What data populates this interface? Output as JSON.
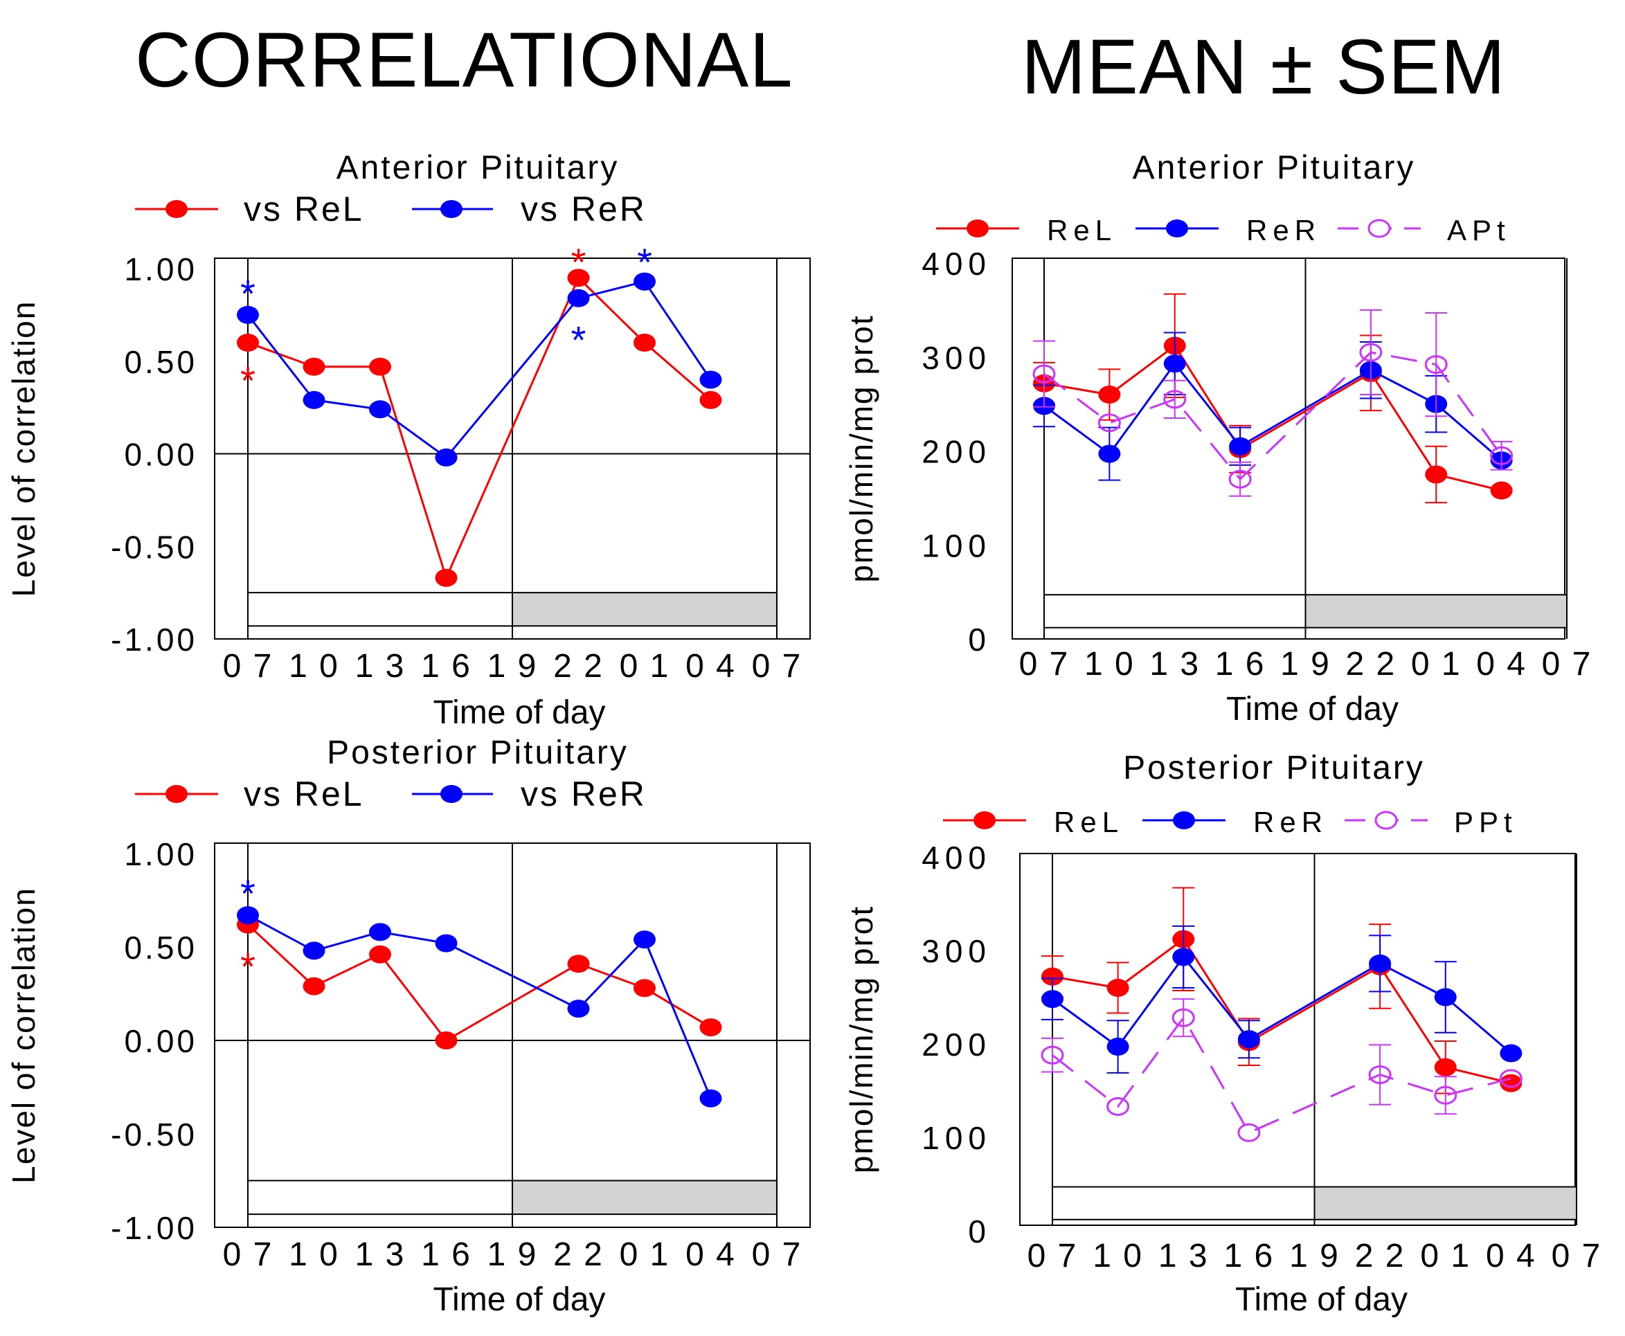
{
  "headings": {
    "left": "CORRELATIONAL",
    "right": "MEAN ± SEM"
  },
  "colors": {
    "rel": "#ff0000",
    "rer": "#0000ff",
    "pt": "#cc33ff",
    "dark_bar": "#d3d3d3"
  },
  "chart_data": [
    {
      "id": "corr-anterior",
      "type": "line",
      "title": "Anterior  Pituitary",
      "xlabel": "Time  of  day",
      "ylabel": "Level  of  correlation",
      "x_ticks": [
        "0 7",
        "1 0",
        "1 3",
        "1 6",
        "1 9",
        "2 2",
        "0 1",
        "0 4",
        "0 7"
      ],
      "y_ticks": [
        "1.00",
        "0.50",
        "0.00",
        "-0.50",
        "-1.00"
      ],
      "ylim": [
        -1,
        1
      ],
      "light_dark_bar": {
        "light": [
          0,
          4
        ],
        "dark": [
          4,
          8
        ],
        "y_range": [
          -0.93,
          -0.75
        ]
      },
      "vlines_x": [
        0,
        4,
        8
      ],
      "zero_line": 0,
      "series": [
        {
          "name": "vs  ReL",
          "color": "#ff0000",
          "marker": "filled",
          "dashed": false,
          "x": [
            0,
            1,
            2,
            3,
            5,
            6,
            7
          ],
          "values": [
            0.6,
            0.47,
            0.47,
            -0.67,
            0.95,
            0.6,
            0.29
          ]
        },
        {
          "name": "vs  ReR",
          "color": "#0000ff",
          "marker": "filled",
          "dashed": false,
          "x": [
            0,
            1,
            2,
            3,
            5,
            6,
            7
          ],
          "values": [
            0.75,
            0.29,
            0.24,
            -0.02,
            0.84,
            0.93,
            0.4
          ]
        }
      ],
      "significance": [
        {
          "x": 0,
          "y": 0.92,
          "color": "#0000ff",
          "label": "*"
        },
        {
          "x": 0,
          "y": 0.45,
          "color": "#ff0000",
          "label": "*"
        },
        {
          "x": 5,
          "y": 1.09,
          "color": "#ff0000",
          "label": "*"
        },
        {
          "x": 5,
          "y": 0.67,
          "color": "#0000ff",
          "label": "*"
        },
        {
          "x": 6,
          "y": 1.09,
          "color": "#0000ff",
          "label": "*"
        }
      ]
    },
    {
      "id": "corr-posterior",
      "type": "line",
      "title": "Posterior  Pituitary",
      "xlabel": "Time  of  day",
      "ylabel": "Level  of  correlation",
      "x_ticks": [
        "0 7",
        "1 0",
        "1 3",
        "1 6",
        "1 9",
        "2 2",
        "0 1",
        "0 4",
        "0 7"
      ],
      "y_ticks": [
        "1.00",
        "0.50",
        "0.00",
        "-0.50",
        "-1.00"
      ],
      "ylim": [
        -1,
        1
      ],
      "light_dark_bar": {
        "light": [
          0,
          4
        ],
        "dark": [
          4,
          8
        ],
        "y_range": [
          -0.93,
          -0.75
        ]
      },
      "vlines_x": [
        0,
        4,
        8
      ],
      "zero_line": 0,
      "series": [
        {
          "name": "vs  ReL",
          "color": "#ff0000",
          "marker": "filled",
          "dashed": false,
          "x": [
            0,
            1,
            2,
            3,
            5,
            6,
            7
          ],
          "values": [
            0.62,
            0.29,
            0.46,
            0.0,
            0.41,
            0.28,
            0.07
          ]
        },
        {
          "name": "vs  ReR",
          "color": "#0000ff",
          "marker": "filled",
          "dashed": false,
          "x": [
            0,
            1,
            2,
            3,
            5,
            6,
            7
          ],
          "values": [
            0.67,
            0.48,
            0.58,
            0.52,
            0.17,
            0.54,
            -0.31
          ]
        }
      ],
      "significance": [
        {
          "x": 0,
          "y": 0.84,
          "color": "#0000ff",
          "label": "*"
        },
        {
          "x": 0,
          "y": 0.45,
          "color": "#ff0000",
          "label": "*"
        }
      ]
    },
    {
      "id": "mean-anterior",
      "type": "line",
      "title": "Anterior  Pituitary",
      "xlabel": "Time  of  day",
      "ylabel": "pmol/min/mg  prot",
      "x_ticks": [
        "0 7",
        "1 0",
        "1 3",
        "1 6",
        "1 9",
        "2 2",
        "0 1",
        "0 4",
        "0 7"
      ],
      "y_ticks": [
        "400",
        "300",
        "200",
        "100",
        "0"
      ],
      "ylim": [
        0,
        400
      ],
      "light_dark_bar": {
        "light": [
          0,
          4
        ],
        "dark": [
          4,
          8
        ],
        "y_range": [
          12,
          47
        ]
      },
      "vlines_x": [
        0,
        4,
        8
      ],
      "series": [
        {
          "name": "ReL",
          "color": "#ff0000",
          "marker": "filled",
          "dashed": false,
          "x": [
            0,
            1,
            2,
            3,
            5,
            6,
            7
          ],
          "values": [
            272,
            260,
            312,
            202,
            283,
            175,
            158
          ],
          "err": [
            22,
            27,
            55,
            25,
            40,
            30,
            0
          ]
        },
        {
          "name": "ReR",
          "color": "#0000ff",
          "marker": "filled",
          "dashed": false,
          "x": [
            0,
            1,
            2,
            3,
            5,
            6,
            7
          ],
          "values": [
            248,
            197,
            293,
            205,
            286,
            250,
            190
          ],
          "err": [
            22,
            28,
            33,
            20,
            30,
            30,
            0
          ]
        },
        {
          "name": "APt",
          "color": "#cc33ff",
          "marker": "open",
          "dashed": true,
          "x": [
            0,
            1,
            2,
            3,
            5,
            6,
            7
          ],
          "values": [
            282,
            230,
            255,
            170,
            305,
            292,
            195
          ],
          "err": [
            35,
            0,
            20,
            18,
            45,
            55,
            15
          ]
        }
      ]
    },
    {
      "id": "mean-posterior",
      "type": "line",
      "title": "Posterior  Pituitary",
      "xlabel": "Time  of  day",
      "ylabel": "pmol/min/mg  prot",
      "x_ticks": [
        "0 7",
        "1 0",
        "1 3",
        "1 6",
        "1 9",
        "2 2",
        "0 1",
        "0 4",
        "0 7"
      ],
      "y_ticks": [
        "400",
        "300",
        "200",
        "100",
        "0"
      ],
      "ylim": [
        0,
        400
      ],
      "light_dark_bar": {
        "light": [
          0,
          4
        ],
        "dark": [
          4,
          8
        ],
        "y_range": [
          12,
          47
        ]
      },
      "vlines_x": [
        0,
        4,
        8
      ],
      "series": [
        {
          "name": "ReL",
          "color": "#ff0000",
          "marker": "filled",
          "dashed": false,
          "x": [
            0,
            1,
            2,
            3,
            5,
            6,
            7
          ],
          "values": [
            272,
            260,
            312,
            202,
            283,
            175,
            158
          ],
          "err": [
            22,
            27,
            55,
            25,
            45,
            28,
            0
          ]
        },
        {
          "name": "ReR",
          "color": "#0000ff",
          "marker": "filled",
          "dashed": false,
          "x": [
            0,
            1,
            2,
            3,
            5,
            6,
            7
          ],
          "values": [
            248,
            197,
            293,
            205,
            286,
            250,
            190
          ],
          "err": [
            22,
            28,
            33,
            20,
            30,
            38,
            0
          ]
        },
        {
          "name": "PPt",
          "color": "#cc33ff",
          "marker": "open",
          "dashed": true,
          "x": [
            0,
            1,
            2,
            3,
            5,
            6,
            7
          ],
          "values": [
            188,
            133,
            228,
            105,
            167,
            145,
            163
          ],
          "err": [
            18,
            0,
            20,
            0,
            32,
            20,
            0
          ]
        }
      ]
    }
  ]
}
